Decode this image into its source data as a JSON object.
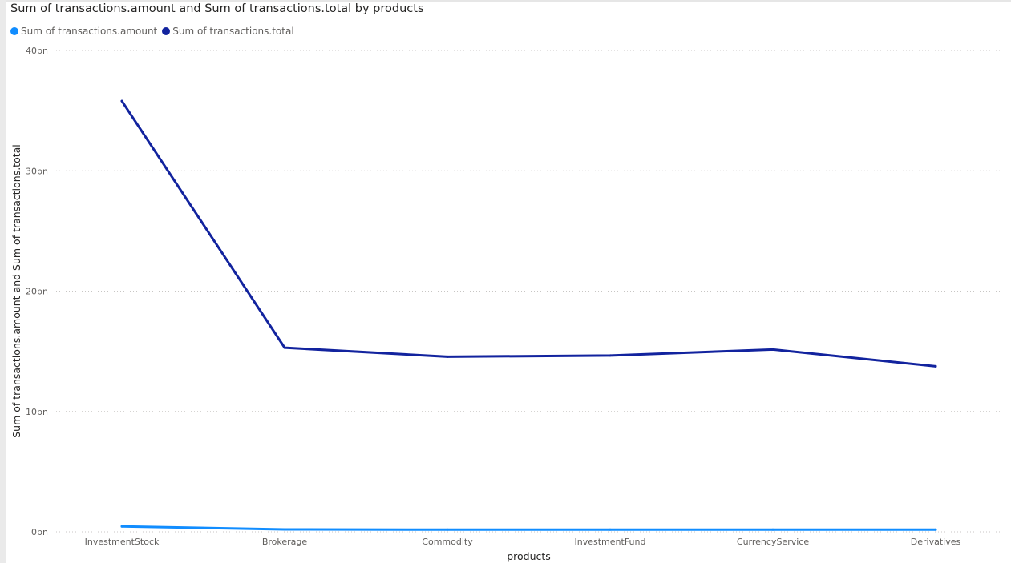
{
  "chart_data": {
    "type": "line",
    "title": "Sum of transactions.amount and Sum of transactions.total by products",
    "xlabel": "products",
    "ylabel": "Sum of transactions.amount and Sum of transactions.total",
    "categories": [
      "InvestmentStock",
      "Brokerage",
      "Commodity",
      "InvestmentFund",
      "CurrencyService",
      "Derivatives"
    ],
    "y_ticks": [
      "0bn",
      "10bn",
      "20bn",
      "30bn",
      "40bn"
    ],
    "ylim": [
      0,
      40
    ],
    "y_unit": "bn",
    "grid": true,
    "legend_position": "top-left",
    "series": [
      {
        "name": "Sum of transactions.amount",
        "color": "#118DFF",
        "values": [
          0.45,
          0.2,
          0.18,
          0.18,
          0.18,
          0.18
        ]
      },
      {
        "name": "Sum of transactions.total",
        "color": "#12239E",
        "values": [
          35.8,
          15.3,
          14.55,
          14.65,
          15.15,
          13.75
        ]
      }
    ]
  }
}
